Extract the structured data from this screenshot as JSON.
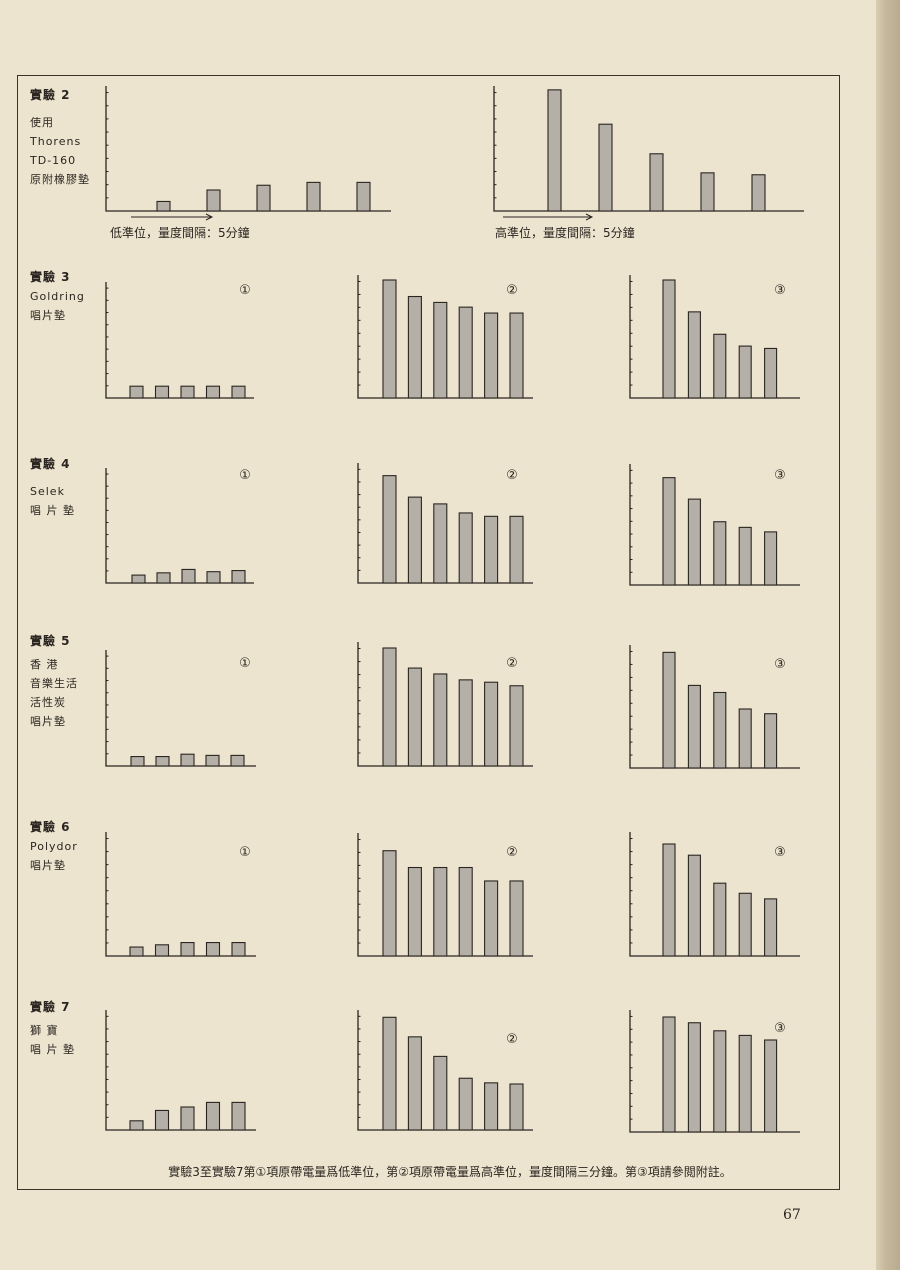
{
  "page_number": "67",
  "footnote": "實驗3至實驗7第①項原帶電量爲低準位，第②項原帶電量爲高準位，量度間隔三分鐘。第③項請參閲附註。",
  "rows": [
    {
      "id": "exp2",
      "title": "實驗 2",
      "lines": [
        "使用",
        "Thorens",
        "TD-160",
        "原附橡膠墊"
      ]
    },
    {
      "id": "exp3",
      "title": "實驗 3",
      "lines": [
        "Goldring",
        "唱片墊"
      ]
    },
    {
      "id": "exp4",
      "title": "實驗 4",
      "lines": [
        "Selek",
        "唱 片 墊"
      ]
    },
    {
      "id": "exp5",
      "title": "實驗 5",
      "lines": [
        "香 港",
        "音樂生活",
        "活性炭",
        "唱片墊"
      ]
    },
    {
      "id": "exp6",
      "title": "實驗 6",
      "lines": [
        "Polydor",
        "唱片墊"
      ]
    },
    {
      "id": "exp7",
      "title": "實驗 7",
      "lines": [
        "獅 寶",
        "唱 片 墊"
      ]
    }
  ],
  "chart_data": [
    {
      "type": "bar",
      "row": "exp2",
      "panel_label": "",
      "caption": "低準位，量度間隔：5分鐘",
      "values": [
        1,
        2.2,
        2.7,
        3,
        3
      ],
      "ylim": [
        0,
        13
      ]
    },
    {
      "type": "bar",
      "row": "exp2",
      "panel_label": "",
      "caption": "高準位，量度間隔：5分鐘",
      "values": [
        12.7,
        9.1,
        6,
        4,
        3.8
      ],
      "ylim": [
        0,
        13
      ]
    },
    {
      "type": "bar",
      "row": "exp3",
      "panel_label": "①",
      "caption": "",
      "values": [
        1,
        1,
        1,
        1,
        1
      ],
      "ylim": [
        0,
        10
      ]
    },
    {
      "type": "bar",
      "row": "exp3",
      "panel_label": "②",
      "caption": "",
      "values": [
        10,
        8.6,
        8.1,
        7.7,
        7.2,
        7.2
      ],
      "ylim": [
        0,
        10
      ]
    },
    {
      "type": "bar",
      "row": "exp3",
      "panel_label": "③",
      "caption": "",
      "values": [
        10,
        7.3,
        5.4,
        4.4,
        4.2
      ],
      "ylim": [
        0,
        10
      ]
    },
    {
      "type": "bar",
      "row": "exp4",
      "panel_label": "①",
      "caption": "",
      "values": [
        0.7,
        0.9,
        1.2,
        1,
        1.1
      ],
      "ylim": [
        0,
        10
      ]
    },
    {
      "type": "bar",
      "row": "exp4",
      "panel_label": "②",
      "caption": "",
      "values": [
        9.5,
        7.6,
        7,
        6.2,
        5.9,
        5.9
      ],
      "ylim": [
        0,
        10
      ]
    },
    {
      "type": "bar",
      "row": "exp4",
      "panel_label": "③",
      "caption": "",
      "values": [
        9.5,
        7.6,
        5.6,
        5.1,
        4.7
      ],
      "ylim": [
        0,
        10
      ]
    },
    {
      "type": "bar",
      "row": "exp5",
      "panel_label": "①",
      "caption": "",
      "values": [
        0.8,
        0.8,
        1,
        0.9,
        0.9
      ],
      "ylim": [
        0,
        10
      ]
    },
    {
      "type": "bar",
      "row": "exp5",
      "panel_label": "②",
      "caption": "",
      "values": [
        10,
        8.3,
        7.8,
        7.3,
        7.1,
        6.8
      ],
      "ylim": [
        0,
        10
      ]
    },
    {
      "type": "bar",
      "row": "exp5",
      "panel_label": "③",
      "caption": "",
      "values": [
        9.8,
        7,
        6.4,
        5,
        4.6
      ],
      "ylim": [
        0,
        10
      ]
    },
    {
      "type": "bar",
      "row": "exp6",
      "panel_label": "①",
      "caption": "",
      "values": [
        0.8,
        1,
        1.2,
        1.2,
        1.2
      ],
      "ylim": [
        0,
        10
      ]
    },
    {
      "type": "bar",
      "row": "exp6",
      "panel_label": "②",
      "caption": "",
      "values": [
        9.4,
        7.9,
        7.9,
        7.9,
        6.7,
        6.7
      ],
      "ylim": [
        0,
        10
      ]
    },
    {
      "type": "bar",
      "row": "exp6",
      "panel_label": "③",
      "caption": "",
      "values": [
        10,
        9,
        6.5,
        5.6,
        5.1
      ],
      "ylim": [
        0,
        10
      ]
    },
    {
      "type": "bar",
      "row": "exp7",
      "panel_label": "",
      "caption": "",
      "values": [
        0.8,
        1.7,
        2,
        2.4,
        2.4
      ],
      "ylim": [
        0,
        10
      ]
    },
    {
      "type": "bar",
      "row": "exp7",
      "panel_label": "②",
      "caption": "",
      "values": [
        9.8,
        8.1,
        6.4,
        4.5,
        4.1,
        4
      ],
      "ylim": [
        0,
        10
      ]
    },
    {
      "type": "bar",
      "row": "exp7",
      "panel_label": "③",
      "caption": "",
      "values": [
        10,
        9.5,
        8.8,
        8.4,
        8
      ],
      "ylim": [
        0,
        10
      ]
    }
  ],
  "colors": {
    "paper": "#ede4cf",
    "ink": "#2a2520",
    "bar_fill": "#b4b0a8"
  }
}
